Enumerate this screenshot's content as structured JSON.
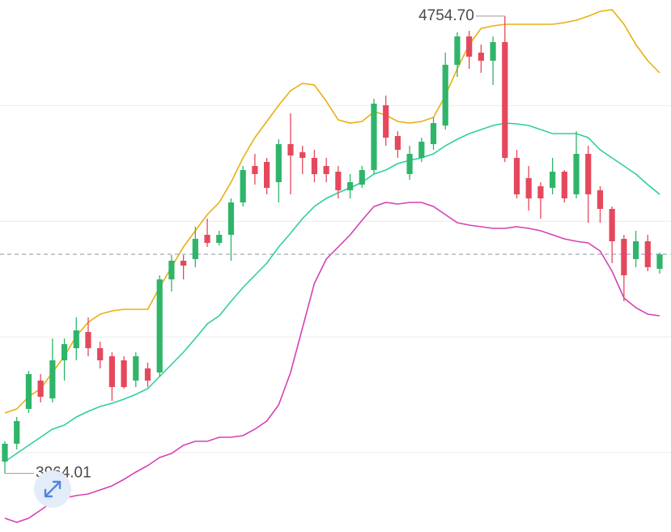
{
  "chart_data": {
    "type": "candlestick",
    "ylim": [
      3862.7,
      4782.5
    ],
    "grid_values": [
      4000,
      4200,
      4400,
      4600
    ],
    "up_color": "#2fb56a",
    "down_color": "#e5485c",
    "max_label": "4754.70",
    "min_label": "3964.01",
    "open": [
      3984.5,
      4015.3,
      4075.5,
      4124.5,
      4093.7,
      4159.5,
      4180.5,
      4208.5,
      4180.5,
      4166.5,
      4159.5,
      4124.5,
      4145.5,
      4138.5,
      4299.5,
      4331.7,
      4334.5,
      4376.5,
      4362.5,
      4376.5,
      4432.5,
      4495.5,
      4502.5,
      4467.5,
      4533.3,
      4519.3,
      4509.5,
      4495.5,
      4485.7,
      4453.5,
      4463.3,
      4488.5,
      4600.5,
      4547.3,
      4481.5,
      4509.5,
      4533.3,
      4565.5,
      4670.5,
      4719.5,
      4691.5,
      4677.5,
      4709.7,
      4509.5,
      4474.5,
      4460.5,
      4457.7,
      4485.7,
      4446.5,
      4516.5,
      4453.5,
      4421.3,
      4369.5,
      4334.5,
      4365.3,
      4317.7
    ],
    "high": [
      4019.5,
      4061.5,
      4141.3,
      4135.7,
      4197.3,
      4197.3,
      4233.7,
      4233.7,
      4191.7,
      4173.5,
      4166.5,
      4173.5,
      4155.3,
      4306.5,
      4341.5,
      4341.5,
      4390.5,
      4404.5,
      4383.5,
      4439.5,
      4495.5,
      4516.5,
      4509.5,
      4541.7,
      4586.5,
      4530.5,
      4523.5,
      4509.5,
      4495.5,
      4481.5,
      4495.5,
      4611.7,
      4617.3,
      4555.7,
      4530.5,
      4544.5,
      4579.5,
      4691.5,
      4726.5,
      4729.3,
      4705.5,
      4719.5,
      4754.7,
      4523.5,
      4495.5,
      4467.5,
      4509.5,
      4488.5,
      4555.7,
      4530.5,
      4460.5,
      4425.5,
      4376.5,
      4383.5,
      4376.5,
      4345.7
    ],
    "low": [
      3964.01,
      4005.5,
      4068.5,
      4086.7,
      4086.7,
      4124.5,
      4159.5,
      4166.5,
      4145.5,
      4089.5,
      4110.5,
      4113.3,
      4113.3,
      4131.5,
      4278.5,
      4299.5,
      4320.5,
      4355.5,
      4358.3,
      4331.7,
      4425.5,
      4463.3,
      4446.5,
      4432.5,
      4446.5,
      4481.5,
      4467.5,
      4467.5,
      4439.5,
      4439.5,
      4457.7,
      4481.5,
      4530.5,
      4509.5,
      4471.7,
      4502.5,
      4523.5,
      4558.5,
      4649.5,
      4663.5,
      4656.5,
      4635.5,
      4502.5,
      4439.5,
      4418.5,
      4404.5,
      4446.5,
      4432.5,
      4439.5,
      4397.5,
      4397.5,
      4327.5,
      4261.7,
      4320.5,
      4313.5,
      4309.3
    ],
    "close": [
      4015.3,
      4054.5,
      4135.7,
      4096.5,
      4159.5,
      4187.5,
      4211.3,
      4180.5,
      4159.5,
      4113.3,
      4113.3,
      4166.5,
      4124.5,
      4299.5,
      4331.7,
      4323.3,
      4369.5,
      4362.5,
      4376.5,
      4432.5,
      4488.5,
      4481.5,
      4457.7,
      4533.3,
      4513.7,
      4509.5,
      4481.5,
      4481.5,
      4453.5,
      4467.5,
      4488.5,
      4603.3,
      4544.5,
      4523.5,
      4516.5,
      4537.5,
      4569.7,
      4670.5,
      4719.5,
      4684.5,
      4677.5,
      4709.7,
      4509.5,
      4446.5,
      4439.5,
      4439.5,
      4485.7,
      4439.5,
      4516.5,
      4446.5,
      4421.3,
      4365.3,
      4306.5,
      4365.3,
      4320.5,
      4342.9
    ],
    "series": [
      {
        "color": "#e8b010",
        "values": [
          4068.5,
          4075.5,
          4096.5,
          4110.5,
          4138.5,
          4166.5,
          4201.5,
          4225.3,
          4239.3,
          4244.9,
          4247.7,
          4247.7,
          4247.7,
          4285.5,
          4320.5,
          4355.5,
          4383.5,
          4411.5,
          4432.5,
          4467.5,
          4509.5,
          4544.5,
          4572.5,
          4600.5,
          4625.7,
          4638.3,
          4635.5,
          4607.5,
          4575.3,
          4569.7,
          4572.5,
          4589.3,
          4583.7,
          4572.5,
          4569.7,
          4572.5,
          4579.5,
          4617.3,
          4663.5,
          4705.5,
          4733.5,
          4737.7,
          4740.5,
          4740.5,
          4740.5,
          4740.5,
          4740.5,
          4743.3,
          4747.5,
          4754.5,
          4762.9,
          4765.7,
          4740.5,
          4705.5,
          4677.5,
          4656.5
        ]
      },
      {
        "color": "#2ecf9f",
        "values": [
          3984.5,
          3998.5,
          4012.5,
          4026.5,
          4040.5,
          4047.5,
          4061.5,
          4071.3,
          4079.7,
          4085.3,
          4092.3,
          4100.7,
          4110.5,
          4131.5,
          4152.5,
          4173.5,
          4197.3,
          4222.5,
          4236.5,
          4261.7,
          4285.5,
          4306.5,
          4327.5,
          4355.5,
          4379.3,
          4404.5,
          4425.5,
          4439.5,
          4449.3,
          4457.7,
          4467.5,
          4481.5,
          4488.5,
          4499.7,
          4505.3,
          4509.5,
          4516.5,
          4530.5,
          4541.7,
          4551.5,
          4558.5,
          4565.5,
          4569.7,
          4568.3,
          4565.5,
          4558.5,
          4551.5,
          4551.5,
          4551.5,
          4544.5,
          4523.5,
          4509.5,
          4495.5,
          4481.5,
          4463.3,
          4446.5
        ]
      },
      {
        "color": "#d640b6",
        "values": [
          3886.5,
          3879.5,
          3886.5,
          3900.5,
          3914.5,
          3921.5,
          3925.7,
          3928.5,
          3935.5,
          3942.5,
          3953.7,
          3966.3,
          3977.5,
          3991.5,
          3998.5,
          4012.5,
          4019.5,
          4019.5,
          4026.5,
          4026.5,
          4029.3,
          4040.5,
          4054.5,
          4082.5,
          4138.5,
          4215.5,
          4292.5,
          4334.5,
          4355.5,
          4376.5,
          4401.7,
          4425.5,
          4432.5,
          4429.7,
          4432.5,
          4432.5,
          4425.5,
          4411.5,
          4397.5,
          4393.3,
          4390.5,
          4387.7,
          4387.7,
          4390.5,
          4387.7,
          4383.5,
          4376.5,
          4369.5,
          4365.3,
          4362.5,
          4348.5,
          4313.5,
          4267.3,
          4250.5,
          4239.3,
          4236.5
        ]
      }
    ]
  }
}
